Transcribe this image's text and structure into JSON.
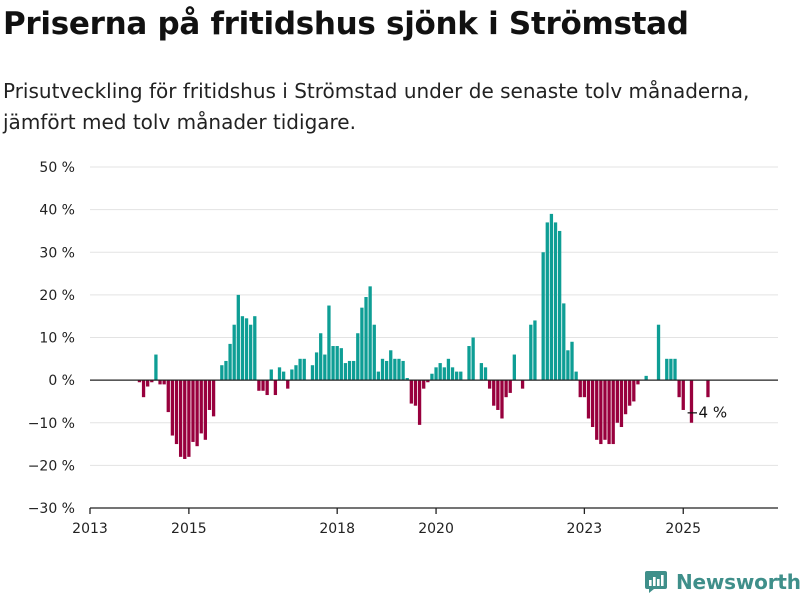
{
  "title": "Priserna på fritidshus sjönk i Strömstad",
  "subtitle": "Prisutveckling för fritidshus i Strömstad under de senaste tolv månaderna, jämfört med tolv månader tidigare.",
  "brand": "Newsworthy",
  "colors": {
    "positive": "#0e9e95",
    "negative": "#98003d",
    "grid": "#e3e3e3",
    "axis": "#222222",
    "brand": "#3f8f8a"
  },
  "chart_data": {
    "type": "bar",
    "title": "Priserna på fritidshus sjönk i Strömstad",
    "xlabel": "",
    "ylabel": "",
    "ylim": [
      -30,
      50
    ],
    "yticks": [
      50,
      40,
      30,
      20,
      10,
      0,
      -10,
      -20,
      -30
    ],
    "ytick_labels": [
      "50 %",
      "40 %",
      "30 %",
      "20 %",
      "10 %",
      "0 %",
      "−10 %",
      "−20 %",
      "−30 %"
    ],
    "xlim": [
      "2013-01",
      "2026-12"
    ],
    "xticks": [
      "2013-01",
      "2015-01",
      "2018-01",
      "2020-01",
      "2023-01",
      "2025-01"
    ],
    "xtick_labels": [
      "2013",
      "2015",
      "2018",
      "2020",
      "2023",
      "2025"
    ],
    "grid": true,
    "annotation": {
      "x": "2025-07",
      "y": -4,
      "text": "−4 %"
    },
    "series": [
      {
        "x": [
          "2014-01",
          "2014-02",
          "2014-03",
          "2014-04",
          "2014-05",
          "2014-06",
          "2014-07",
          "2014-08",
          "2014-09",
          "2014-10",
          "2014-11",
          "2014-12",
          "2015-01",
          "2015-02",
          "2015-03",
          "2015-04",
          "2015-05",
          "2015-06",
          "2015-07",
          "2015-08",
          "2015-09",
          "2015-10",
          "2015-11",
          "2015-12",
          "2016-01",
          "2016-02",
          "2016-03",
          "2016-04",
          "2016-05",
          "2016-06",
          "2016-07",
          "2016-08",
          "2016-09",
          "2016-10",
          "2016-11",
          "2016-12",
          "2017-01",
          "2017-02",
          "2017-03",
          "2017-04",
          "2017-05",
          "2017-06",
          "2017-07",
          "2017-08",
          "2017-09",
          "2017-10",
          "2017-11",
          "2017-12",
          "2018-01",
          "2018-02",
          "2018-03",
          "2018-04",
          "2018-05",
          "2018-06",
          "2018-07",
          "2018-08",
          "2018-09",
          "2018-10",
          "2018-11",
          "2018-12",
          "2019-01",
          "2019-02",
          "2019-03",
          "2019-04",
          "2019-05",
          "2019-06",
          "2019-07",
          "2019-08",
          "2019-09",
          "2019-10",
          "2019-11",
          "2019-12",
          "2020-01",
          "2020-02",
          "2020-03",
          "2020-04",
          "2020-05",
          "2020-06",
          "2020-07",
          "2020-08",
          "2020-09",
          "2020-10",
          "2020-11",
          "2020-12",
          "2021-01",
          "2021-02",
          "2021-03",
          "2021-04",
          "2021-05",
          "2021-06",
          "2021-07",
          "2021-08",
          "2021-09",
          "2021-10",
          "2021-11",
          "2021-12",
          "2022-01",
          "2022-02",
          "2022-03",
          "2022-04",
          "2022-05",
          "2022-06",
          "2022-07",
          "2022-08",
          "2022-09",
          "2022-10",
          "2022-11",
          "2022-12",
          "2023-01",
          "2023-02",
          "2023-03",
          "2023-04",
          "2023-05",
          "2023-06",
          "2023-07",
          "2023-08",
          "2023-09",
          "2023-10",
          "2023-11",
          "2023-12",
          "2024-01",
          "2024-02",
          "2024-03",
          "2024-04",
          "2024-05",
          "2024-06",
          "2024-07",
          "2024-08",
          "2024-09",
          "2024-10",
          "2024-11",
          "2024-12",
          "2025-01",
          "2025-02",
          "2025-03",
          "2025-04",
          "2025-05",
          "2025-06",
          "2025-07"
        ],
        "values": [
          -0.5,
          -4,
          -1.5,
          -0.5,
          6,
          -1,
          -1,
          -7.5,
          -13,
          -15,
          -18,
          -18.5,
          -18,
          -14.5,
          -15.5,
          -12.5,
          -14,
          -7,
          -8.5,
          0,
          3.5,
          4.5,
          8.5,
          13,
          20,
          15,
          14.5,
          13,
          15,
          -2.5,
          -2.5,
          -3.5,
          2.5,
          -3.5,
          3,
          2,
          -2,
          2.5,
          3.5,
          5,
          5,
          0,
          3.5,
          6.5,
          11,
          6,
          17.5,
          8,
          8,
          7.5,
          4,
          4.5,
          4.5,
          11,
          17,
          19.5,
          22,
          13,
          2,
          5,
          4.5,
          7,
          5,
          5,
          4.5,
          0.5,
          -5.5,
          -6,
          -10.5,
          -2,
          -0.5,
          1.5,
          3,
          4,
          3,
          5,
          3,
          2,
          2,
          0,
          8,
          10,
          0,
          4,
          3,
          -2,
          -6,
          -7,
          -9,
          -4,
          -3,
          6,
          0,
          -2,
          0,
          13,
          14,
          0,
          30,
          37,
          39,
          37,
          35,
          18,
          7,
          9,
          2,
          -4,
          -4,
          -9,
          -11,
          -14,
          -15,
          -14,
          -15,
          -15,
          -10,
          -11,
          -8,
          -6,
          -5,
          -1,
          0,
          1,
          0,
          0,
          13,
          0,
          5,
          5,
          5,
          -4,
          -7,
          0,
          -10,
          0,
          0,
          0,
          -4
        ]
      }
    ]
  }
}
